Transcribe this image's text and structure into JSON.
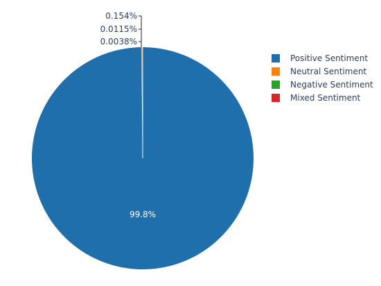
{
  "chart_data": {
    "type": "pie",
    "slices": [
      {
        "label": "Positive Sentiment",
        "value": 99.8315,
        "display": "99.8%",
        "color": "#1f6fad"
      },
      {
        "label": "Neutral Sentiment",
        "value": 0.154,
        "display": "0.154%",
        "color": "#ff7f0e"
      },
      {
        "label": "Negative Sentiment",
        "value": 0.0115,
        "display": "0.0115%",
        "color": "#2ca02c"
      },
      {
        "label": "Mixed Sentiment",
        "value": 0.0038,
        "display": "0.0038%",
        "color": "#d62728"
      }
    ],
    "legend_position": "right",
    "sort": "descending",
    "direction": "clockwise"
  }
}
